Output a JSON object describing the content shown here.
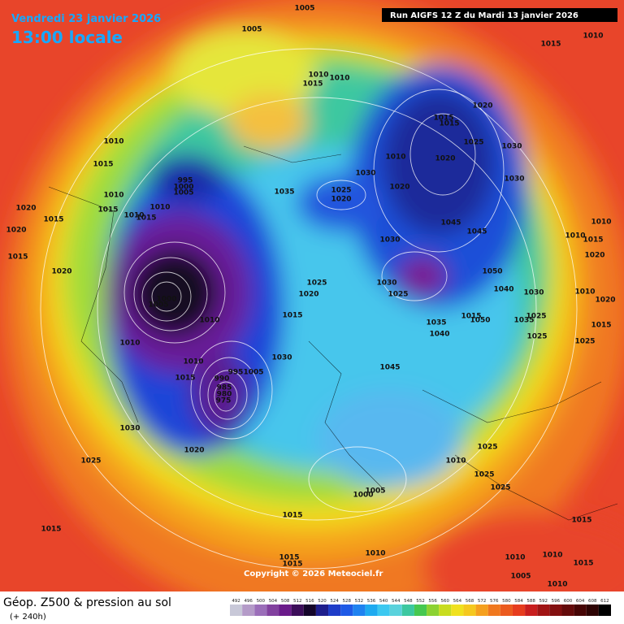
{
  "header": {
    "date": "Vendredi 23 janvier 2026",
    "time": "13:00 locale",
    "run": "Run AIGFS 12 Z du Mardi 13 janvier 2026"
  },
  "footer": {
    "title": "Géop. Z500 & pression au sol",
    "lead": "(+ 240h)",
    "copyright": "Copyright © 2026 Meteociel.fr"
  },
  "legend": {
    "levels": [
      492,
      496,
      500,
      504,
      508,
      512,
      516,
      520,
      524,
      528,
      532,
      536,
      540,
      544,
      548,
      552,
      556,
      560,
      564,
      568,
      572,
      576,
      580,
      584,
      588,
      592,
      596,
      600,
      604,
      608,
      612
    ]
  },
  "isobar_labels": [
    1005,
    1005,
    1015,
    1010,
    1010,
    1015,
    1010,
    1020,
    1015,
    1015,
    1025,
    1030,
    1010,
    1020,
    1030,
    1030,
    1020,
    1025,
    1020,
    1035,
    995,
    1000,
    1005,
    1010,
    1015,
    1010,
    1015,
    1010,
    1015,
    1010,
    1020,
    1015,
    1020,
    1015,
    1020,
    1000,
    1005,
    1010,
    1025,
    1020,
    1015,
    1030,
    1010,
    1015,
    990,
    995,
    1005,
    985,
    980,
    975,
    1045,
    1040,
    1035,
    1045,
    1045,
    1030,
    1050,
    1040,
    1030,
    1025,
    1015,
    1050,
    1030,
    1025,
    1035,
    1025,
    1010,
    1015,
    1010,
    1020,
    1010,
    1020,
    1015,
    1025,
    1010,
    1030,
    1020,
    1025,
    1015,
    1015,
    1015,
    1015,
    1010,
    1005,
    1000,
    1010,
    1025,
    1025,
    1025,
    1015,
    1010,
    1005,
    1010,
    1015,
    1010
  ]
}
